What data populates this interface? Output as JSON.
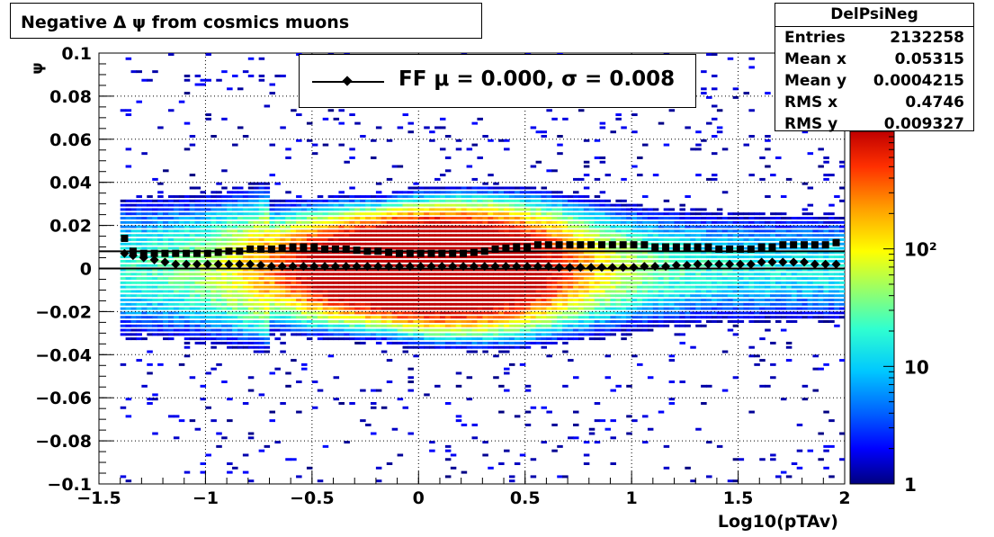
{
  "title": "Negative Δ ψ from cosmics muons",
  "stats": {
    "name": "DelPsiNeg",
    "rows": [
      {
        "label": "Entries",
        "value": "2132258"
      },
      {
        "label": "Mean x",
        "value": "0.05315"
      },
      {
        "label": "Mean y",
        "value": "0.0004215"
      },
      {
        "label": "RMS x",
        "value": "0.4746"
      },
      {
        "label": "RMS y",
        "value": "0.009327"
      }
    ]
  },
  "legend": {
    "text": "FF μ =  0.000, σ =   0.008"
  },
  "chart_data": {
    "type": "heatmap",
    "title": "Negative Δ ψ from cosmics muons",
    "xlabel": "Log10(pTAv)",
    "ylabel": "ψ",
    "xlim": [
      -1.5,
      2
    ],
    "ylim": [
      -0.1,
      0.1
    ],
    "x_ticks": [
      "−1.5",
      "−1",
      "−0.5",
      "0",
      "0.5",
      "1",
      "1.5",
      "2"
    ],
    "x_tick_values": [
      -1.5,
      -1,
      -0.5,
      0,
      0.5,
      1,
      1.5,
      2
    ],
    "y_ticks": [
      "0.1",
      "0.08",
      "0.06",
      "0.04",
      "0.02",
      "0",
      "−0.02",
      "−0.04",
      "−0.06",
      "−0.08",
      "−0.1"
    ],
    "y_tick_values": [
      0.1,
      0.08,
      0.06,
      0.04,
      0.02,
      0,
      -0.02,
      -0.04,
      -0.06,
      -0.08,
      -0.1
    ],
    "z_scale": "log",
    "z_ticks": [
      "1",
      "10",
      "10²"
    ],
    "z_tick_values": [
      1,
      10,
      100
    ],
    "z_range": [
      1,
      1000
    ],
    "grid": true,
    "legend_position": "top-center",
    "colors": {
      "palette": [
        "#00007f",
        "#0000ff",
        "#0060ff",
        "#00c8ff",
        "#30ffd0",
        "#a0ff60",
        "#ffff00",
        "#ffa000",
        "#ff3000",
        "#c00000"
      ],
      "markers": "#000000"
    },
    "profile_sigma": {
      "marker": "square",
      "x": [
        -1.38,
        -1.34,
        -1.29,
        -1.24,
        -1.19,
        -1.14,
        -1.09,
        -1.04,
        -0.99,
        -0.94,
        -0.89,
        -0.84,
        -0.79,
        -0.74,
        -0.69,
        -0.64,
        -0.59,
        -0.54,
        -0.49,
        -0.44,
        -0.39,
        -0.34,
        -0.29,
        -0.24,
        -0.19,
        -0.14,
        -0.09,
        -0.04,
        0.01,
        0.06,
        0.11,
        0.16,
        0.21,
        0.26,
        0.31,
        0.36,
        0.41,
        0.46,
        0.51,
        0.56,
        0.61,
        0.66,
        0.71,
        0.76,
        0.81,
        0.86,
        0.91,
        0.96,
        1.01,
        1.06,
        1.11,
        1.16,
        1.21,
        1.26,
        1.31,
        1.36,
        1.41,
        1.46,
        1.51,
        1.56,
        1.61,
        1.66,
        1.71,
        1.76,
        1.81,
        1.86,
        1.91,
        1.96
      ],
      "y": [
        0.014,
        0.008,
        0.007,
        0.007,
        0.007,
        0.007,
        0.007,
        0.007,
        0.007,
        0.0075,
        0.008,
        0.008,
        0.009,
        0.009,
        0.009,
        0.0095,
        0.01,
        0.01,
        0.01,
        0.009,
        0.009,
        0.009,
        0.0085,
        0.008,
        0.008,
        0.0075,
        0.007,
        0.007,
        0.007,
        0.007,
        0.007,
        0.007,
        0.007,
        0.0075,
        0.008,
        0.009,
        0.0095,
        0.01,
        0.01,
        0.011,
        0.011,
        0.011,
        0.011,
        0.011,
        0.011,
        0.011,
        0.011,
        0.011,
        0.011,
        0.011,
        0.01,
        0.01,
        0.01,
        0.01,
        0.01,
        0.01,
        0.009,
        0.009,
        0.009,
        0.009,
        0.01,
        0.01,
        0.011,
        0.011,
        0.011,
        0.011,
        0.011,
        0.012
      ]
    },
    "profile_mean": {
      "marker": "diamond",
      "x": [
        -1.38,
        -1.34,
        -1.29,
        -1.24,
        -1.19,
        -1.14,
        -1.09,
        -1.04,
        -0.99,
        -0.94,
        -0.89,
        -0.84,
        -0.79,
        -0.74,
        -0.69,
        -0.64,
        -0.59,
        -0.54,
        -0.49,
        -0.44,
        -0.39,
        -0.34,
        -0.29,
        -0.24,
        -0.19,
        -0.14,
        -0.09,
        -0.04,
        0.01,
        0.06,
        0.11,
        0.16,
        0.21,
        0.26,
        0.31,
        0.36,
        0.41,
        0.46,
        0.51,
        0.56,
        0.61,
        0.66,
        0.71,
        0.76,
        0.81,
        0.86,
        0.91,
        0.96,
        1.01,
        1.06,
        1.11,
        1.16,
        1.21,
        1.26,
        1.31,
        1.36,
        1.41,
        1.46,
        1.51,
        1.56,
        1.61,
        1.66,
        1.71,
        1.76,
        1.81,
        1.86,
        1.91,
        1.96
      ],
      "y": [
        0.007,
        0.006,
        0.005,
        0.004,
        0.003,
        0.002,
        0.002,
        0.002,
        0.002,
        0.002,
        0.002,
        0.002,
        0.002,
        0.0015,
        0.001,
        0.001,
        0.001,
        0.001,
        0.001,
        0.001,
        0.001,
        0.001,
        0.001,
        0.001,
        0.001,
        0.001,
        0.001,
        0.001,
        0.001,
        0.001,
        0.001,
        0.001,
        0.001,
        0.001,
        0.001,
        0.001,
        0.001,
        0.001,
        0.001,
        0.001,
        0.001,
        0.0005,
        0.0005,
        0.0005,
        0.0005,
        0.0005,
        0.0005,
        0.0005,
        0.0005,
        0.001,
        0.001,
        0.001,
        0.0015,
        0.0015,
        0.002,
        0.002,
        0.002,
        0.002,
        0.002,
        0.002,
        0.003,
        0.003,
        0.003,
        0.003,
        0.003,
        0.002,
        0.002,
        0.002
      ]
    },
    "reference_lines": [
      {
        "name": "zero",
        "y": 0
      },
      {
        "name": "sigma",
        "y": 0.008
      }
    ]
  }
}
